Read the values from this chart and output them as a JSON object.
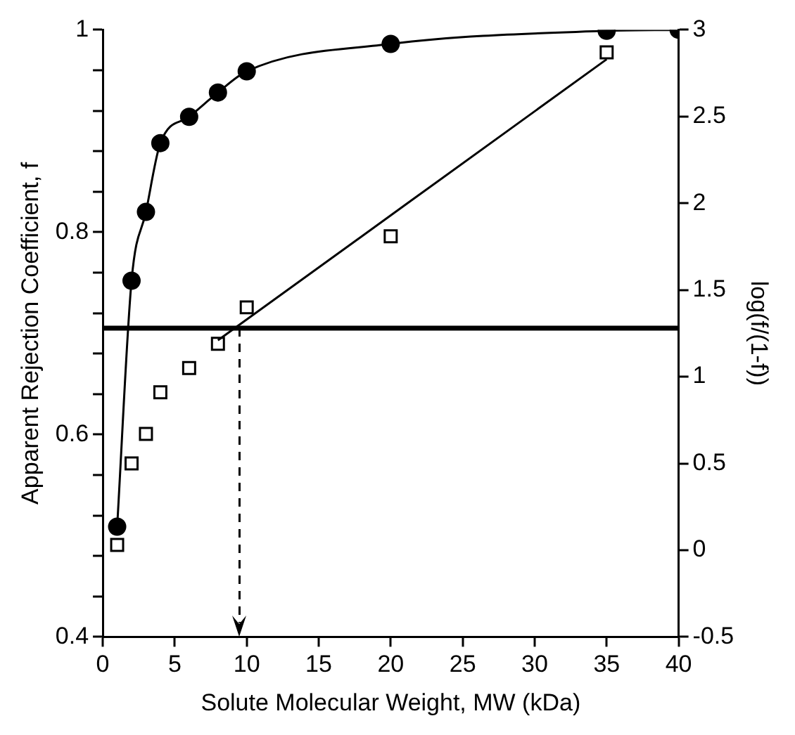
{
  "chart_data": {
    "type": "line",
    "xlabel": "Solute Molecular Weight, MW (kDa)",
    "ylabel": "Apparent Rejection Coefficient, f",
    "y2label": "log(f/(1-f))",
    "xlim": [
      0,
      40
    ],
    "xticks": [
      0,
      5,
      10,
      15,
      20,
      25,
      30,
      35,
      40
    ],
    "ylim": [
      0.4,
      1.0
    ],
    "yticks": [
      0.4,
      {
        "value": 0.44,
        "label": null
      },
      {
        "value": 0.48,
        "label": null
      },
      {
        "value": 0.52,
        "label": null
      },
      {
        "value": 0.56,
        "label": null
      },
      0.6,
      {
        "value": 0.64,
        "label": null
      },
      {
        "value": 0.68,
        "label": null
      },
      {
        "value": 0.72,
        "label": null
      },
      {
        "value": 0.76,
        "label": null
      },
      0.8,
      {
        "value": 0.84,
        "label": null
      },
      {
        "value": 0.88,
        "label": null
      },
      {
        "value": 0.92,
        "label": null
      },
      {
        "value": 0.96,
        "label": null
      },
      1.0
    ],
    "y2lim": [
      -0.5,
      3
    ],
    "y2ticks": [
      -0.5,
      0,
      0.5,
      1,
      1.5,
      2,
      2.5,
      3
    ],
    "grid": false,
    "legend": false,
    "series": [
      {
        "type": "line",
        "color": "#000000",
        "marker": "circle",
        "x": [
          1,
          2,
          3,
          4,
          6,
          8,
          10,
          20,
          35,
          40
        ],
        "values": [
          0.509,
          0.752,
          0.82,
          0.888,
          0.914,
          0.938,
          0.959,
          0.986,
          0.999,
          1.0
        ]
      },
      {
        "type": "scatter",
        "axis": "y2",
        "color": "#000000",
        "marker": "square",
        "x": [
          1,
          2,
          3,
          4,
          6,
          8,
          10,
          20,
          35
        ],
        "values": [
          0.03,
          0.5,
          0.67,
          0.91,
          1.05,
          1.19,
          1.4,
          1.81,
          2.87
        ]
      },
      {
        "type": "line",
        "axis": "y2",
        "color": "#000000",
        "marker": "none",
        "x": [
          8,
          35
        ],
        "values": [
          1.21,
          2.83
        ]
      }
    ],
    "ref_lines": [
      {
        "axis": "y2",
        "value": 1.28,
        "color": "#000000",
        "line_style": "solid"
      },
      {
        "axis": "x",
        "value": 9.5,
        "color": "#000000",
        "line_style": "dashed"
      }
    ]
  }
}
